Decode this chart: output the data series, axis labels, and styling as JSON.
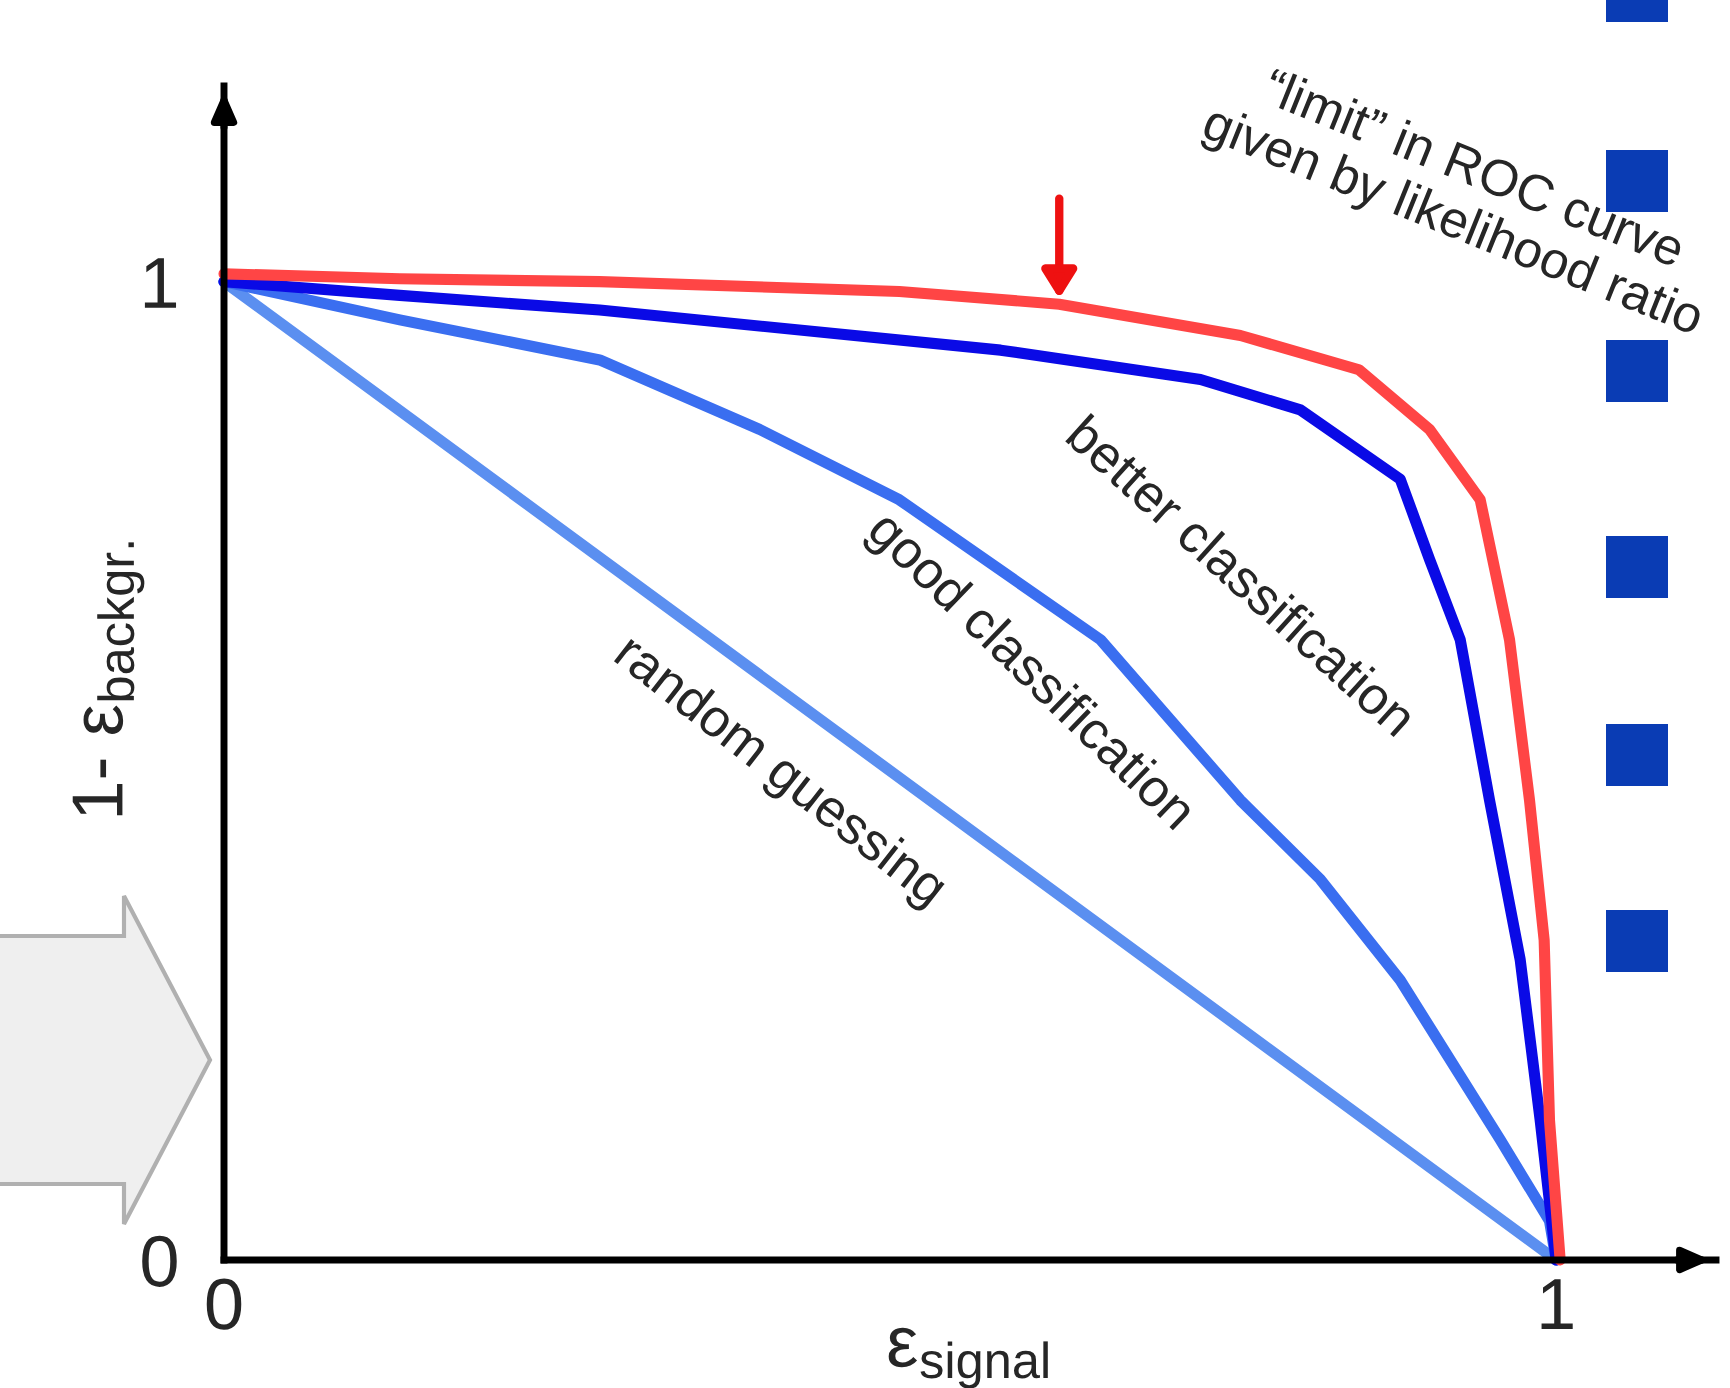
{
  "chart_data": {
    "type": "line",
    "xlabel": "ε$_{signal}$",
    "ylabel": "1- ε$_{backgr.}$",
    "xlim": [
      0,
      1.12
    ],
    "ylim": [
      0,
      1.2
    ],
    "xticks": [
      0,
      1
    ],
    "yticks": [
      0,
      1
    ],
    "grid": false,
    "legend": false,
    "marker": "none",
    "line_style": "solid",
    "series": [
      {
        "name": "random guessing",
        "color": "#5b8ff0",
        "x": [
          0,
          1
        ],
        "values": [
          1,
          0
        ]
      },
      {
        "name": "good classification",
        "color": "#3a6ef0",
        "x": [
          0,
          0.132,
          0.282,
          0.402,
          0.507,
          0.658,
          0.763,
          0.823,
          0.883,
          0.958,
          0.995,
          1
        ],
        "values": [
          1,
          0.961,
          0.92,
          0.849,
          0.777,
          0.634,
          0.47,
          0.389,
          0.286,
          0.123,
          0.04,
          0
        ]
      },
      {
        "name": "better classification",
        "color": "#0a0ae6",
        "x": [
          0,
          0.132,
          0.282,
          0.583,
          0.733,
          0.808,
          0.883,
          0.905,
          0.928,
          0.95,
          0.973,
          0.988,
          1
        ],
        "values": [
          1,
          0.986,
          0.971,
          0.93,
          0.9,
          0.869,
          0.798,
          0.716,
          0.634,
          0.47,
          0.307,
          0.143,
          0
        ]
      },
      {
        "color": "#ff4545",
        "x": [
          0,
          0.132,
          0.282,
          0.507,
          0.627,
          0.763,
          0.852,
          0.905,
          0.943,
          0.965,
          0.98,
          0.991,
          0.995,
          1.003
        ],
        "values": [
          1.008,
          1.003,
          1.0,
          0.99,
          0.977,
          0.945,
          0.91,
          0.849,
          0.777,
          0.634,
          0.47,
          0.327,
          0.143,
          0
        ]
      }
    ],
    "annotations": [
      {
        "text": "“limit” in ROC curve\ngiven by likelihood ratio",
        "x": 0.627,
        "y": 0.977
      }
    ]
  }
}
